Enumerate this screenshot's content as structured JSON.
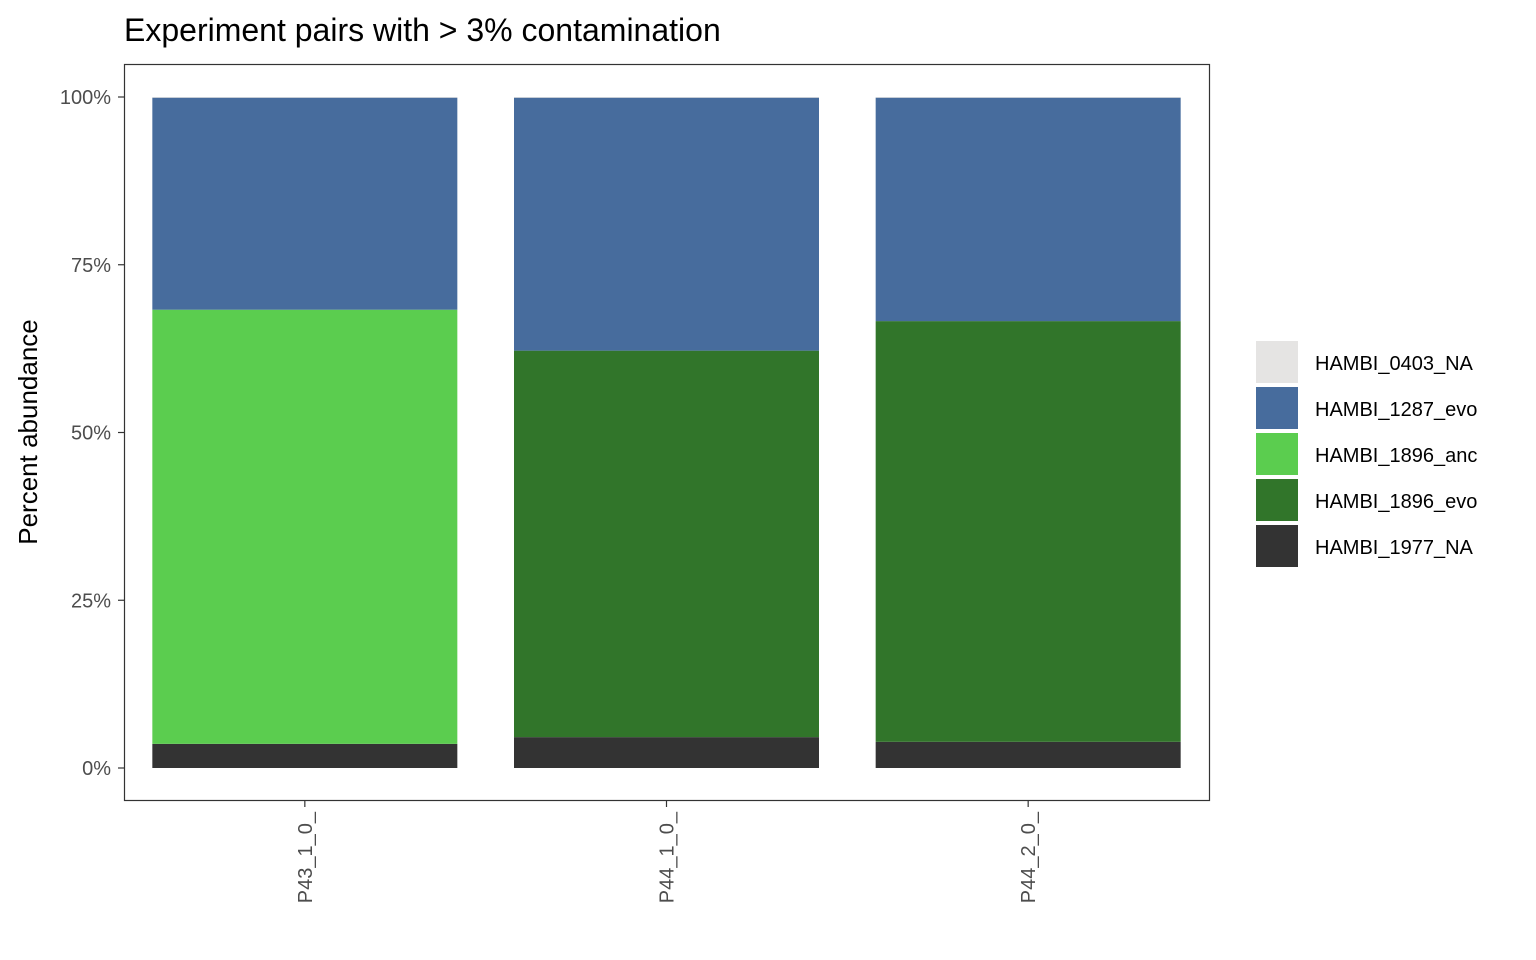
{
  "chart_data": {
    "type": "bar",
    "stacked": true,
    "title": "Experiment pairs with > 3% contamination",
    "xlabel": "",
    "ylabel": "Percent abundance",
    "ylim": [
      0,
      1
    ],
    "y_ticks": [
      "0%",
      "25%",
      "50%",
      "75%",
      "100%"
    ],
    "y_tick_values": [
      0,
      0.25,
      0.5,
      0.75,
      1.0
    ],
    "categories": [
      "P43_1_0_",
      "P44_1_0_",
      "P44_2_0_"
    ],
    "series": [
      {
        "name": "HAMBI_1977_NA",
        "color": "#333333",
        "values": [
          0.036,
          0.046,
          0.039
        ]
      },
      {
        "name": "HAMBI_1896_evo",
        "color": "#31752a",
        "values": [
          0.0,
          0.576,
          0.627
        ]
      },
      {
        "name": "HAMBI_1896_anc",
        "color": "#5bcd4f",
        "values": [
          0.647,
          0.0,
          0.0
        ]
      },
      {
        "name": "HAMBI_1287_evo",
        "color": "#476c9d",
        "values": [
          0.316,
          0.377,
          0.333
        ]
      },
      {
        "name": "HAMBI_0403_NA",
        "color": "#e5e4e3",
        "values": [
          0.001,
          0.001,
          0.001
        ]
      }
    ],
    "legend": {
      "placement": "right",
      "entries": [
        {
          "name": "HAMBI_0403_NA",
          "color": "#e5e4e3"
        },
        {
          "name": "HAMBI_1287_evo",
          "color": "#476c9d"
        },
        {
          "name": "HAMBI_1896_anc",
          "color": "#5bcd4f"
        },
        {
          "name": "HAMBI_1896_evo",
          "color": "#31752a"
        },
        {
          "name": "HAMBI_1977_NA",
          "color": "#333333"
        }
      ]
    },
    "grid": false
  }
}
